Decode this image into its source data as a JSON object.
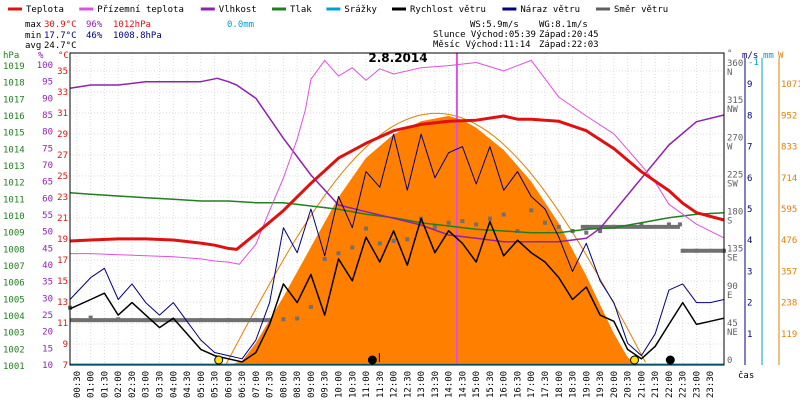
{
  "chart_data": {
    "type": "line",
    "title": "2.8.2014",
    "legend": [
      {
        "name": "Teplota",
        "color": "#e01010"
      },
      {
        "name": "Přízemní teplota",
        "color": "#e050e0"
      },
      {
        "name": "Vlhkost",
        "color": "#9020b0"
      },
      {
        "name": "Tlak",
        "color": "#208020"
      },
      {
        "name": "Srážky",
        "color": "#00a0d0"
      },
      {
        "name": "Rychlost větru",
        "color": "#000000"
      },
      {
        "name": "Náraz větru",
        "color": "#000080"
      },
      {
        "name": "Směr větru",
        "color": "#606060"
      }
    ],
    "stats": {
      "max_label": "max",
      "max_temp": "30.9°C",
      "max_hum": "96%",
      "max_press": "1012hPa",
      "max_rain": "0.0mm",
      "min_label": "min",
      "min_temp": "17.7°C",
      "min_hum": "46%",
      "min_press": "1008.8hPa",
      "avg_label": "avg",
      "avg_temp": "24.7°C"
    },
    "info": {
      "ws": "WS:5.9m/s",
      "wg": "WG:8.1m/s",
      "sun": "Slunce Východ:05:39",
      "sun_set": "Západ:20:45",
      "moon": "Měsíc  Východ:11:14",
      "moon_set": "Západ:22:03"
    },
    "axis_units": {
      "hpa": "hPa",
      "pct": "%",
      "degc": "°C",
      "deg": "°",
      "ms": "m/s",
      "mm": "mm",
      "w": "W",
      "time": "čas"
    },
    "y_hpa_ticks": [
      "1019",
      "1018",
      "1017",
      "1016",
      "1015",
      "1014",
      "1013",
      "1012",
      "1011",
      "1010",
      "1009",
      "1008",
      "1007",
      "1006",
      "1005",
      "1004",
      "1003",
      "1002",
      "1001"
    ],
    "y_pct_ticks": [
      "100",
      "95",
      "90",
      "85",
      "80",
      "75",
      "70",
      "65",
      "60",
      "55",
      "50",
      "45",
      "40",
      "35",
      "30",
      "25",
      "20",
      "15",
      "10"
    ],
    "y_temp_ticks": [
      "35",
      "33",
      "31",
      "29",
      "27",
      "25",
      "23",
      "21",
      "19",
      "17",
      "15",
      "13",
      "11",
      "9",
      "7"
    ],
    "y_dir_ticks": [
      {
        "deg": "360",
        "card": "N"
      },
      {
        "deg": "315",
        "card": "NW"
      },
      {
        "deg": "270",
        "card": "W"
      },
      {
        "deg": "225",
        "card": "SW"
      },
      {
        "deg": "180",
        "card": "S"
      },
      {
        "deg": "135",
        "card": "SE"
      },
      {
        "deg": "90",
        "card": "E"
      },
      {
        "deg": "45",
        "card": "NE"
      },
      {
        "deg": "0",
        "card": ""
      }
    ],
    "y_ms_ticks": [
      "9",
      "8",
      "7",
      "6",
      "5",
      "4",
      "3",
      "2",
      "1"
    ],
    "y_ms_top": "-1",
    "y_w_ticks": [
      "1071",
      "952",
      "833",
      "714",
      "595",
      "476",
      "357",
      "238",
      "119"
    ],
    "x_ticks": [
      "00:30",
      "01:00",
      "01:30",
      "02:00",
      "02:30",
      "03:00",
      "03:30",
      "04:00",
      "04:30",
      "05:00",
      "05:30",
      "06:00",
      "06:30",
      "07:00",
      "07:30",
      "08:00",
      "08:30",
      "09:00",
      "09:30",
      "10:00",
      "10:30",
      "11:00",
      "11:30",
      "12:00",
      "12:30",
      "13:00",
      "13:30",
      "14:00",
      "14:30",
      "15:00",
      "15:30",
      "16:00",
      "16:30",
      "17:00",
      "17:30",
      "18:00",
      "18:30",
      "19:00",
      "19:30",
      "20:00",
      "20:30",
      "21:00",
      "21:30",
      "22:00",
      "22:30",
      "23:00",
      "23:30"
    ],
    "x_range_hours": [
      0.25,
      24
    ],
    "y_temp_range": [
      7,
      36.7
    ],
    "series_temp": {
      "x": [
        0.25,
        1,
        2,
        3,
        4,
        5,
        5.5,
        6,
        6.3,
        7,
        8,
        9,
        10,
        11,
        12,
        13,
        14,
        15,
        16,
        16.5,
        17,
        18,
        19,
        20,
        21,
        22,
        22.5,
        23,
        24
      ],
      "y": [
        18.8,
        18.9,
        19.0,
        19.0,
        18.9,
        18.6,
        18.4,
        18.1,
        18.0,
        19.5,
        21.7,
        24.3,
        26.7,
        28.1,
        29.3,
        29.9,
        30.2,
        30.3,
        30.7,
        30.4,
        30.4,
        30.2,
        29.3,
        27.6,
        25.4,
        23.6,
        22.4,
        21.5,
        20.8
      ]
    },
    "series_ground": {
      "x": [
        0.25,
        1,
        2,
        3,
        4,
        5,
        5.5,
        6,
        6.4,
        7,
        7.5,
        8,
        8.5,
        8.8,
        9,
        9.5,
        10,
        10.5,
        11,
        11.5,
        12,
        13,
        14,
        15,
        16,
        17,
        18,
        19,
        20,
        20.5,
        21,
        21.5,
        22,
        23,
        24
      ],
      "y": [
        17.6,
        17.6,
        17.5,
        17.4,
        17.3,
        17.1,
        16.9,
        16.8,
        16.6,
        18.5,
        21.7,
        24.8,
        28.5,
        31.3,
        34.2,
        36.0,
        34.5,
        35.3,
        34.1,
        35.2,
        34.7,
        35.3,
        35.5,
        35.8,
        35.0,
        36.0,
        32.5,
        30.7,
        29.0,
        27.5,
        26.0,
        24.4,
        22.3,
        20.4,
        19.1
      ]
    },
    "series_humidity": {
      "x": [
        0.25,
        1,
        2,
        3,
        4,
        5,
        5.6,
        6,
        6.3,
        7,
        8,
        9,
        10,
        11,
        12,
        13,
        14,
        15,
        16,
        17,
        17.5,
        18,
        19,
        19.5,
        20,
        21,
        22,
        23,
        24
      ],
      "y": [
        93,
        94,
        94,
        95,
        95,
        95,
        96,
        95,
        94,
        90,
        78,
        67,
        58,
        56,
        54,
        52,
        49,
        48,
        47,
        47,
        47,
        47,
        48,
        51,
        56,
        66,
        76,
        83,
        85
      ]
    },
    "series_pressure": {
      "x": [
        0.25,
        1,
        2,
        3,
        4,
        5,
        6,
        7,
        8,
        9,
        10,
        11,
        12,
        13,
        14,
        15,
        16,
        17,
        18,
        19,
        20,
        21,
        22,
        23,
        24
      ],
      "y": [
        1011.4,
        1011.3,
        1011.2,
        1011.1,
        1011.0,
        1010.9,
        1010.9,
        1010.8,
        1010.8,
        1010.6,
        1010.4,
        1010.1,
        1009.9,
        1009.6,
        1009.4,
        1009.2,
        1009.1,
        1009.0,
        1009.0,
        1009.2,
        1009.3,
        1009.6,
        1009.9,
        1010.1,
        1010.2
      ]
    },
    "series_wind_speed_ms": {
      "x": [
        0.25,
        1,
        1.5,
        2,
        2.5,
        3,
        3.5,
        4,
        4.5,
        5,
        5.5,
        6,
        6.5,
        7,
        7.5,
        8,
        8.5,
        9,
        9.5,
        10,
        10.5,
        11,
        11.5,
        12,
        12.5,
        13,
        13.5,
        14,
        14.5,
        15,
        15.5,
        16,
        16.5,
        17,
        17.5,
        18,
        18.5,
        19,
        19.5,
        20,
        20.5,
        21,
        21.5,
        22,
        22.5,
        23,
        23.5,
        24
      ],
      "y": [
        1.8,
        2.1,
        2.3,
        1.6,
        2.0,
        1.6,
        1.2,
        1.5,
        1.0,
        0.5,
        0.3,
        0.2,
        0.1,
        0.4,
        1.3,
        2.6,
        2.0,
        2.9,
        1.6,
        3.4,
        2.7,
        4.1,
        3.3,
        4.3,
        3.2,
        4.7,
        3.6,
        4.3,
        3.9,
        3.3,
        4.6,
        3.5,
        4.0,
        3.6,
        3.3,
        2.8,
        2.1,
        2.5,
        1.6,
        1.4,
        0.5,
        0.2,
        0.6,
        1.3,
        2.0,
        1.3,
        1.4,
        1.5
      ]
    },
    "series_wind_gust_ms": {
      "x": [
        0.25,
        1,
        1.5,
        2,
        2.5,
        3,
        3.5,
        4,
        4.5,
        5,
        5.5,
        6,
        6.5,
        7,
        7.5,
        8,
        8.5,
        9,
        9.5,
        10,
        10.5,
        11,
        11.5,
        12,
        12.5,
        13,
        13.5,
        14,
        14.5,
        15,
        15.5,
        16,
        16.5,
        17,
        17.5,
        18,
        18.5,
        19,
        19.5,
        20,
        20.5,
        21,
        21.5,
        22,
        22.5,
        23,
        23.5,
        24
      ],
      "y": [
        2.1,
        2.8,
        3.1,
        2.1,
        2.6,
        2.0,
        1.6,
        2.0,
        1.4,
        0.8,
        0.4,
        0.3,
        0.2,
        0.8,
        2.0,
        4.4,
        3.6,
        5.0,
        3.5,
        5.4,
        4.4,
        6.2,
        5.7,
        7.4,
        5.6,
        7.4,
        6.0,
        6.8,
        7.0,
        5.8,
        7.0,
        5.6,
        6.2,
        5.4,
        5.0,
        4.1,
        3.0,
        3.9,
        2.7,
        2.0,
        0.7,
        0.3,
        1.0,
        2.4,
        2.6,
        2.0,
        2.0,
        2.1
      ]
    },
    "series_wind_dir_deg": {
      "x": [
        0.25,
        1,
        2,
        3,
        4,
        5,
        6,
        7,
        7.5,
        8,
        8.5,
        9,
        9.5,
        10,
        10.5,
        11,
        11.5,
        12,
        12.5,
        13,
        13.5,
        14,
        14.5,
        15,
        15.5,
        16,
        16.5,
        17,
        17.5,
        18,
        18.5,
        19,
        19.5,
        20,
        21,
        22,
        22.4,
        22.5,
        23,
        24
      ],
      "y": [
        67,
        55,
        53,
        52,
        52,
        52,
        52,
        52,
        52,
        53,
        54,
        68,
        126,
        133,
        140,
        163,
        145,
        148,
        150,
        175,
        165,
        170,
        172,
        168,
        175,
        180,
        160,
        185,
        170,
        165,
        160,
        158,
        160,
        165,
        168,
        168,
        168,
        136,
        136,
        136
      ]
    },
    "series_solar_w": {
      "x": [
        6,
        6.5,
        7,
        8,
        9,
        10,
        11,
        12,
        13,
        14,
        14.5,
        15,
        16,
        17,
        18,
        19,
        19.5,
        20,
        20.5,
        20.8
      ],
      "y": [
        0,
        15,
        85,
        260,
        450,
        640,
        790,
        880,
        930,
        950,
        935,
        905,
        820,
        700,
        540,
        340,
        230,
        120,
        30,
        0
      ]
    },
    "rain_mm": 0.0,
    "markers": [
      {
        "label": "sunrise",
        "hour": 5.65
      },
      {
        "label": "moonrise",
        "hour": 11.23
      },
      {
        "label": "sunset",
        "hour": 20.75
      },
      {
        "label": "moonset",
        "hour": 22.05
      }
    ],
    "vertical_highlight_hour": 14.3,
    "grid": true
  }
}
